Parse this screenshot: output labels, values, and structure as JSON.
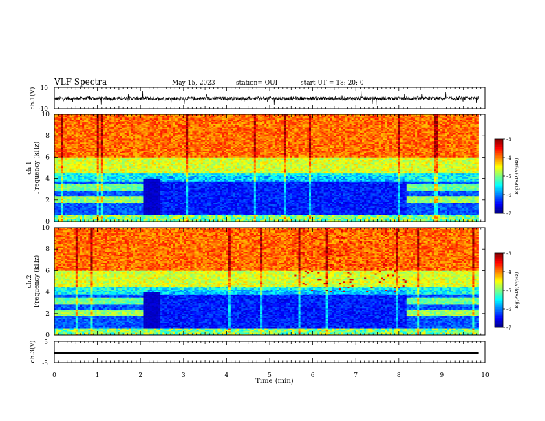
{
  "header": {
    "title": "VLF Spectra",
    "date": "May 15, 2023",
    "station": "station= OUI",
    "start": "start  UT =   18: 20: 0"
  },
  "chart_data": [
    {
      "type": "line",
      "ylabel": "ch.1(V)",
      "ylim": [
        -10,
        10
      ],
      "yticks": [
        "10",
        "-10"
      ],
      "baseline": -0.5,
      "xlim": [
        0,
        9.85
      ]
    },
    {
      "type": "heatmap",
      "ylabel_line1": "ch.1",
      "ylabel_line2": "Frequency (kHz)",
      "ylim": [
        0,
        10
      ],
      "yticks": [
        "0",
        "2",
        "4",
        "6",
        "8",
        "10"
      ],
      "xlim": [
        0,
        9.85
      ],
      "colorbar": {
        "label": "log(PSD)(V²/Hz)",
        "ticks": [
          "-3",
          "-4",
          "-5",
          "-6",
          "-7"
        ],
        "range": [
          -7,
          -3
        ]
      }
    },
    {
      "type": "heatmap",
      "ylabel_line1": "ch.2",
      "ylabel_line2": "Frequency (kHz)",
      "ylim": [
        0,
        10
      ],
      "yticks": [
        "0",
        "2",
        "4",
        "6",
        "8",
        "10"
      ],
      "xlim": [
        0,
        9.85
      ],
      "colorbar": {
        "label": "log(PSD)(V²/Hz)",
        "ticks": [
          "-3",
          "-4",
          "-5",
          "-6",
          "-7"
        ],
        "range": [
          -7,
          -3
        ]
      }
    },
    {
      "type": "line",
      "ylabel": "ch.3(V)",
      "ylim": [
        -5,
        5
      ],
      "yticks": [
        "5",
        "-5"
      ],
      "baseline": -0.5,
      "xlim": [
        0,
        9.85
      ]
    }
  ],
  "xaxis": {
    "label": "Time (min)",
    "range": [
      0,
      10
    ],
    "ticks": [
      "0",
      "1",
      "2",
      "3",
      "4",
      "5",
      "6",
      "7",
      "8",
      "9",
      "10"
    ]
  }
}
